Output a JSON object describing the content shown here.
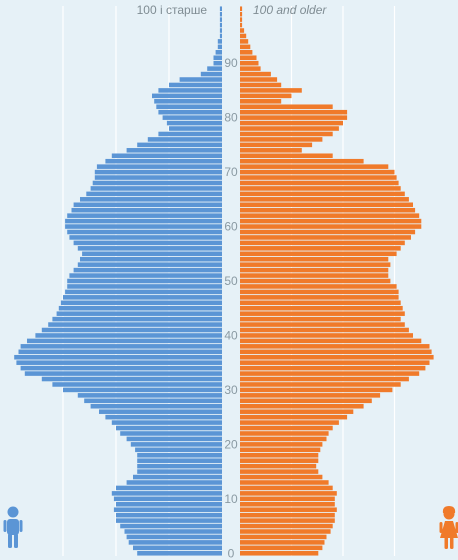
{
  "chart_data": {
    "type": "bar",
    "orientation": "horizontal",
    "layout": "population-pyramid",
    "top_label_left": "100 і старше",
    "top_label_right": "100 and older",
    "age_ticks": [
      "0",
      "10",
      "20",
      "30",
      "40",
      "50",
      "60",
      "70",
      "80",
      "90"
    ],
    "grid": true,
    "colors": {
      "male": "#5b95d5",
      "female": "#f07a2a",
      "background": "#e6f1f7",
      "grid": "#ffffff",
      "tick": "#8a9aa3"
    },
    "icons": {
      "male": "man-icon",
      "female": "woman-icon"
    },
    "x_max": 100,
    "series": [
      {
        "name": "",
        "side": "left",
        "values": [
          40,
          42,
          44,
          45,
          46,
          48,
          50,
          50,
          51,
          50,
          51,
          52,
          50,
          45,
          42,
          40,
          40,
          40,
          40,
          41,
          43,
          45,
          48,
          50,
          52,
          55,
          58,
          62,
          65,
          68,
          75,
          80,
          85,
          93,
          95,
          97,
          98,
          96,
          95,
          92,
          88,
          85,
          82,
          80,
          78,
          77,
          76,
          75,
          74,
          73,
          73,
          72,
          70,
          68,
          67,
          66,
          68,
          70,
          72,
          73,
          74,
          74,
          73,
          71,
          70,
          67,
          64,
          62,
          61,
          60,
          60,
          59,
          55,
          52,
          45,
          40,
          35,
          30,
          25,
          26,
          28,
          30,
          31,
          32,
          33,
          30,
          25,
          20,
          10,
          7,
          4,
          4,
          3,
          2,
          2,
          1,
          1,
          1,
          1,
          1,
          1
        ]
      },
      {
        "name": "",
        "side": "right",
        "values": [
          38,
          40,
          41,
          42,
          44,
          45,
          46,
          46,
          47,
          46,
          46,
          47,
          45,
          43,
          40,
          38,
          37,
          38,
          38,
          39,
          40,
          42,
          43,
          45,
          48,
          52,
          55,
          60,
          64,
          68,
          74,
          78,
          82,
          87,
          90,
          92,
          94,
          93,
          92,
          88,
          84,
          82,
          80,
          78,
          80,
          79,
          78,
          77,
          77,
          76,
          73,
          72,
          72,
          73,
          72,
          76,
          78,
          80,
          83,
          85,
          88,
          88,
          87,
          85,
          84,
          82,
          80,
          78,
          77,
          76,
          75,
          72,
          60,
          45,
          30,
          35,
          40,
          45,
          48,
          50,
          52,
          52,
          45,
          20,
          25,
          30,
          20,
          18,
          15,
          10,
          9,
          8,
          6,
          5,
          4,
          3,
          2,
          1,
          1,
          1,
          1
        ]
      }
    ]
  }
}
